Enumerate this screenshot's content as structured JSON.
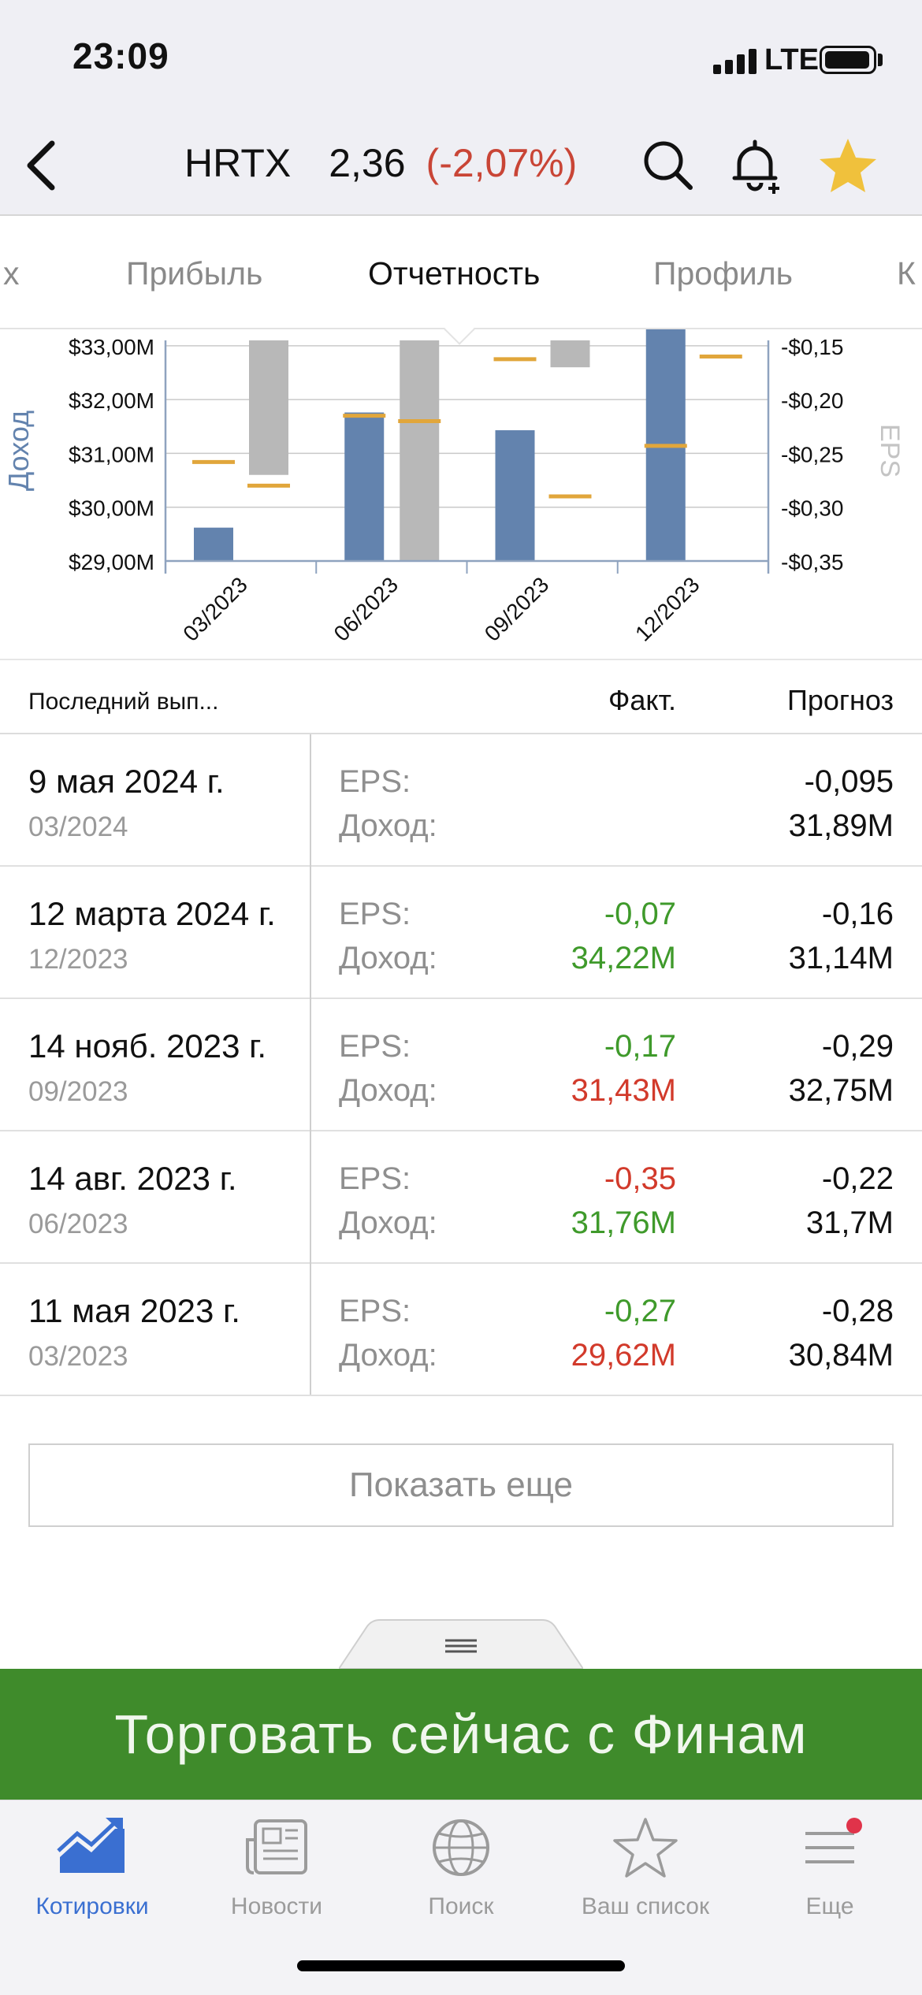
{
  "status": {
    "time": "23:09",
    "network": "LTE"
  },
  "header": {
    "symbol": "HRTX",
    "price": "2,36",
    "change": "(-2,07%)"
  },
  "tabs": [
    {
      "label": "х"
    },
    {
      "label": "Прибыль"
    },
    {
      "label": "Отчетность",
      "active": true
    },
    {
      "label": "Профиль"
    },
    {
      "label": "К"
    }
  ],
  "chart_data": {
    "type": "bar",
    "categories": [
      "03/2023",
      "06/2023",
      "09/2023",
      "12/2023"
    ],
    "left_axis": {
      "label": "Доход",
      "ticks": [
        "$29,00M",
        "$30,00M",
        "$31,00M",
        "$32,00M",
        "$33,00M"
      ],
      "range": [
        29.0,
        33.1
      ]
    },
    "right_axis": {
      "label": "EPS",
      "ticks": [
        "-$0,35",
        "-$0,30",
        "-$0,25",
        "-$0,20",
        "-$0,15"
      ],
      "range": [
        -0.35,
        -0.145
      ]
    },
    "revenue_actual": [
      29.62,
      31.76,
      31.43,
      34.22
    ],
    "revenue_forecast": [
      30.84,
      31.7,
      32.75,
      31.14
    ],
    "eps_actual": [
      -0.27,
      -0.35,
      -0.17,
      -0.07
    ],
    "eps_forecast": [
      -0.28,
      -0.22,
      -0.29,
      -0.16
    ],
    "colors": {
      "revenue": "#6383ae",
      "eps": "#b8b8b8",
      "marker": "#e1a63b",
      "axis": "#8fa3bf"
    }
  },
  "table": {
    "col_release": "Последний вып...",
    "col_actual": "Факт.",
    "col_forecast": "Прогноз",
    "eps_label": "EPS:",
    "revenue_label": "Доход:",
    "rows": [
      {
        "date": "9 мая 2024 г.",
        "period": "03/2024",
        "eps_actual": "",
        "eps_forecast": "-0,095",
        "rev_actual": "",
        "rev_forecast": "31,89M",
        "eps_color": "#111111",
        "rev_color": "#111111"
      },
      {
        "date": "12 марта 2024 г.",
        "period": "12/2023",
        "eps_actual": "-0,07",
        "eps_forecast": "-0,16",
        "rev_actual": "34,22M",
        "rev_forecast": "31,14M",
        "eps_color": "#3f9a2b",
        "rev_color": "#3f9a2b"
      },
      {
        "date": "14 нояб. 2023 г.",
        "period": "09/2023",
        "eps_actual": "-0,17",
        "eps_forecast": "-0,29",
        "rev_actual": "31,43M",
        "rev_forecast": "32,75M",
        "eps_color": "#3f9a2b",
        "rev_color": "#d23a2b"
      },
      {
        "date": "14 авг. 2023 г.",
        "period": "06/2023",
        "eps_actual": "-0,35",
        "eps_forecast": "-0,22",
        "rev_actual": "31,76M",
        "rev_forecast": "31,7M",
        "eps_color": "#d23a2b",
        "rev_color": "#3f9a2b"
      },
      {
        "date": "11 мая 2023 г.",
        "period": "03/2023",
        "eps_actual": "-0,27",
        "eps_forecast": "-0,28",
        "rev_actual": "29,62M",
        "rev_forecast": "30,84M",
        "eps_color": "#3f9a2b",
        "rev_color": "#d23a2b"
      }
    ]
  },
  "show_more": "Показать еще",
  "banner": "Торговать сейчас с Финам",
  "tabbar": [
    {
      "label": "Котировки",
      "icon": "chart-trend-icon",
      "active": true
    },
    {
      "label": "Новости",
      "icon": "newspaper-icon"
    },
    {
      "label": "Поиск",
      "icon": "globe-icon"
    },
    {
      "label": "Ваш список",
      "icon": "star-outline-icon"
    },
    {
      "label": "Еще",
      "icon": "menu-icon",
      "badge": true
    }
  ]
}
